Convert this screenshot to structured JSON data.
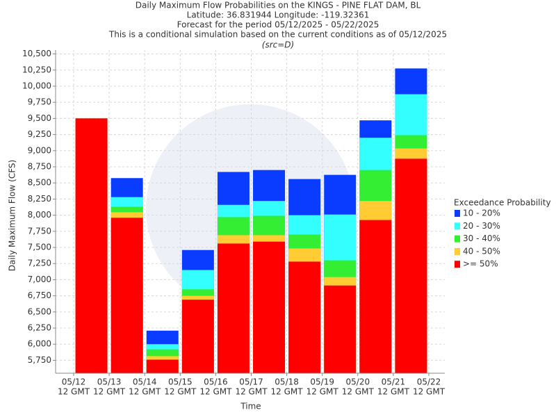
{
  "chart_data": {
    "type": "bar",
    "title_lines": [
      "Daily Maximum Flow Probabilities on the KINGS - PINE FLAT DAM, BL",
      "Latitude: 36.831944 Longitude: -119.32361",
      "Forecast for the period 05/12/2025 - 05/22/2025",
      "This is a conditional simulation based on the current conditions as of 05/12/2025"
    ],
    "subtitle": "(src=D)",
    "y_label": "Daily Maximum Flow (CFS)",
    "x_label": "Time",
    "legend_title": "Exceedance Probability",
    "x_tick_labels": [
      {
        "date": "05/12",
        "time": "12 GMT"
      },
      {
        "date": "05/13",
        "time": "12 GMT"
      },
      {
        "date": "05/14",
        "time": "12 GMT"
      },
      {
        "date": "05/15",
        "time": "12 GMT"
      },
      {
        "date": "05/16",
        "time": "12 GMT"
      },
      {
        "date": "05/17",
        "time": "12 GMT"
      },
      {
        "date": "05/18",
        "time": "12 GMT"
      },
      {
        "date": "05/19",
        "time": "12 GMT"
      },
      {
        "date": "05/20",
        "time": "12 GMT"
      },
      {
        "date": "05/21",
        "time": "12 GMT"
      },
      {
        "date": "05/22",
        "time": "12 GMT"
      }
    ],
    "ylim": [
      5550,
      10560
    ],
    "yticks": [
      {
        "value": 5750,
        "label": "5,750"
      },
      {
        "value": 6000,
        "label": "6,000"
      },
      {
        "value": 6250,
        "label": "6,250"
      },
      {
        "value": 6500,
        "label": "6,500"
      },
      {
        "value": 6750,
        "label": "6,750"
      },
      {
        "value": 7000,
        "label": "7,000"
      },
      {
        "value": 7250,
        "label": "7,250"
      },
      {
        "value": 7500,
        "label": "7,500"
      },
      {
        "value": 7750,
        "label": "7,750"
      },
      {
        "value": 8000,
        "label": "8,000"
      },
      {
        "value": 8250,
        "label": "8,250"
      },
      {
        "value": 8500,
        "label": "8,500"
      },
      {
        "value": 8750,
        "label": "8,750"
      },
      {
        "value": 9000,
        "label": "9,000"
      },
      {
        "value": 9250,
        "label": "9,250"
      },
      {
        "value": 9500,
        "label": "9,500"
      },
      {
        "value": 9750,
        "label": "9,750"
      },
      {
        "value": 10000,
        "label": "10,000"
      },
      {
        "value": 10250,
        "label": "10,250"
      },
      {
        "value": 10500,
        "label": "10,500"
      }
    ],
    "grid": true,
    "series": [
      {
        "name": "10 - 20%",
        "color": "#0a3cff",
        "values": [
          9500,
          8575,
          6210,
          7460,
          8670,
          8700,
          8560,
          8625,
          9470,
          10275
        ]
      },
      {
        "name": "20 - 30%",
        "color": "#33ffff",
        "values": [
          9500,
          8280,
          6000,
          7150,
          8160,
          8220,
          8000,
          8010,
          9200,
          9875
        ]
      },
      {
        "name": "30 - 40%",
        "color": "#33ee33",
        "values": [
          9500,
          8130,
          5920,
          6850,
          7970,
          7990,
          7700,
          7300,
          8700,
          9240
        ]
      },
      {
        "name": "40 - 50%",
        "color": "#ffcc33",
        "values": [
          9500,
          8045,
          5815,
          6750,
          7690,
          7690,
          7485,
          7040,
          8220,
          9035
        ]
      },
      {
        "name": ">= 50%",
        "color": "#ff0000",
        "values": [
          9500,
          7960,
          5760,
          6690,
          7560,
          7590,
          7280,
          6910,
          7925,
          8875
        ]
      }
    ]
  }
}
